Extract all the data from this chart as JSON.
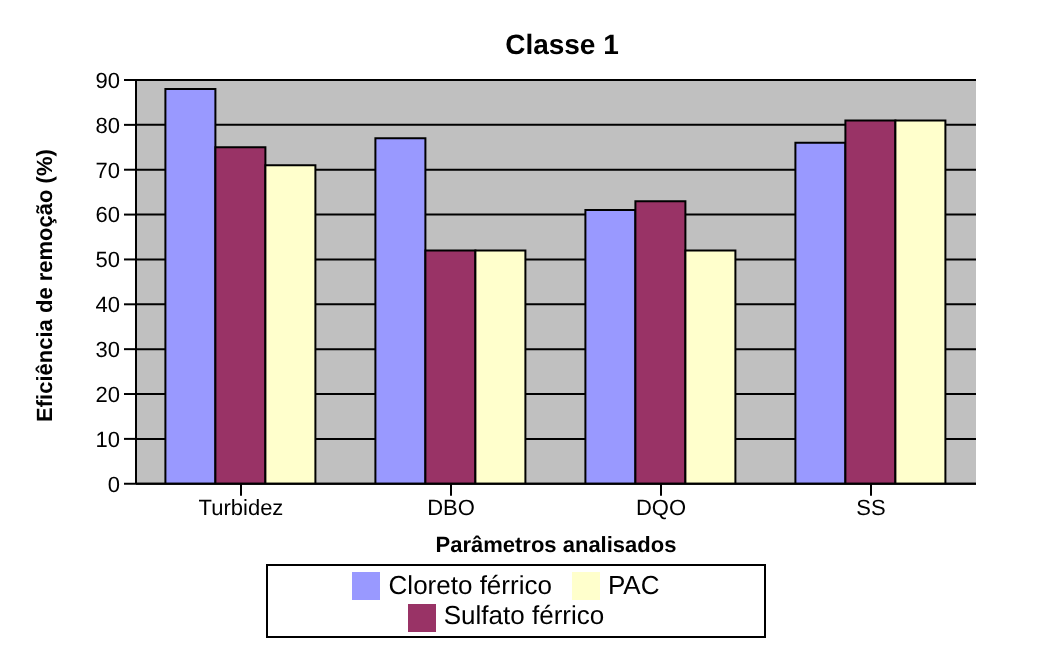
{
  "chart_data": {
    "type": "bar",
    "title": "Classe 1",
    "xlabel": "Parâmetros analisados",
    "ylabel": "Eficiência de remoção (%)",
    "categories": [
      "Turbidez",
      "DBO",
      "DQO",
      "SS"
    ],
    "series": [
      {
        "name": "Cloreto férrico",
        "color": "#9999ff",
        "values": [
          88,
          77,
          61,
          76
        ]
      },
      {
        "name": "Sulfato férrico",
        "color": "#993366",
        "values": [
          75,
          52,
          63,
          81
        ]
      },
      {
        "name": "PAC",
        "color": "#ffffcc",
        "values": [
          71,
          52,
          52,
          81
        ]
      }
    ],
    "ylim": [
      0,
      90
    ],
    "yticks": [
      0,
      10,
      20,
      30,
      40,
      50,
      60,
      70,
      80,
      90
    ],
    "grid": "y",
    "legend": "bottom"
  }
}
